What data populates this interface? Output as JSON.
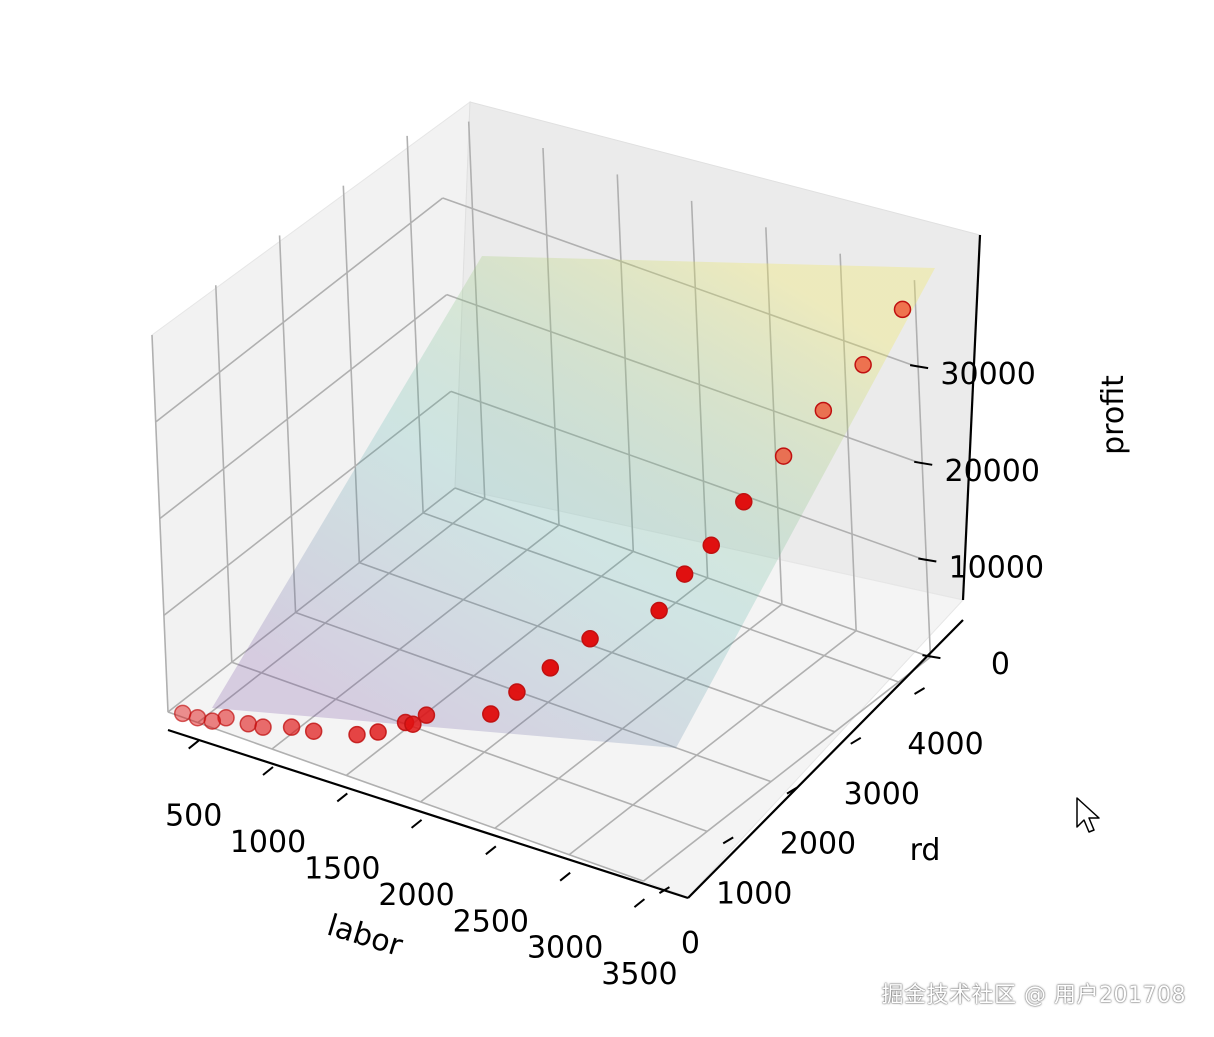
{
  "chart_data": {
    "type": "scatter",
    "subtype": "3d-scatter-with-regression-plane",
    "xlabel": "labor",
    "ylabel": "rd",
    "zlabel": "profit",
    "xticks": [
      "500",
      "1000",
      "1500",
      "2000",
      "2500",
      "3000",
      "3500"
    ],
    "yticks": [
      "0",
      "1000",
      "2000",
      "3000",
      "4000"
    ],
    "zticks": [
      "0",
      "10000",
      "20000",
      "30000"
    ],
    "grid": true,
    "point_color": "#e01010",
    "plane_colormap": "viridis",
    "series": [
      {
        "points": [
          {
            "x": 400,
            "y": 0,
            "z": 400
          },
          {
            "x": 500,
            "y": 0,
            "z": 500
          },
          {
            "x": 600,
            "y": 0,
            "z": 700
          },
          {
            "x": 650,
            "y": 100,
            "z": 800
          },
          {
            "x": 800,
            "y": 100,
            "z": 1000
          },
          {
            "x": 900,
            "y": 100,
            "z": 1200
          },
          {
            "x": 1050,
            "y": 200,
            "z": 1500
          },
          {
            "x": 1200,
            "y": 200,
            "z": 1900
          },
          {
            "x": 1450,
            "y": 300,
            "z": 2400
          },
          {
            "x": 1550,
            "y": 400,
            "z": 2700
          },
          {
            "x": 1650,
            "y": 600,
            "z": 3200
          },
          {
            "x": 1700,
            "y": 600,
            "z": 3300
          },
          {
            "x": 1750,
            "y": 700,
            "z": 4000
          },
          {
            "x": 2100,
            "y": 900,
            "z": 5000
          },
          {
            "x": 2150,
            "y": 1200,
            "z": 6000
          },
          {
            "x": 2250,
            "y": 1500,
            "z": 7500
          },
          {
            "x": 2350,
            "y": 1900,
            "z": 9000
          },
          {
            "x": 2650,
            "y": 2300,
            "z": 11500
          },
          {
            "x": 2700,
            "y": 2600,
            "z": 14000
          },
          {
            "x": 2800,
            "y": 2800,
            "z": 16500
          },
          {
            "x": 2900,
            "y": 3100,
            "z": 20000
          },
          {
            "x": 3050,
            "y": 3400,
            "z": 24000
          },
          {
            "x": 3200,
            "y": 3700,
            "z": 28000
          },
          {
            "x": 3350,
            "y": 4000,
            "z": 32000
          },
          {
            "x": 3500,
            "y": 4300,
            "z": 37000
          }
        ]
      }
    ]
  },
  "watermark": "掘金技术社区 @ 用户201708",
  "icons": {
    "cursor": "mouse-pointer-icon"
  }
}
